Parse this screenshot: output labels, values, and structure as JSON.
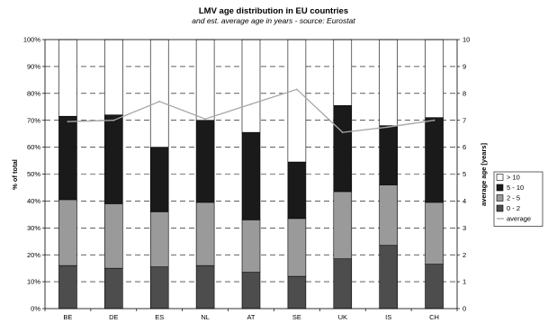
{
  "chart_data": {
    "type": "bar",
    "stacked": true,
    "title": "LMV age distribution in EU countries",
    "subtitle": "and est. average age in years - source: Eurostat",
    "categories": [
      "BE",
      "DE",
      "ES",
      "NL",
      "AT",
      "SE",
      "UK",
      "IS",
      "CH"
    ],
    "ylabel": "% of total",
    "y2label": "average age [years]",
    "ylim": [
      0,
      100
    ],
    "y2lim": [
      0,
      10
    ],
    "yticks": [
      "0%",
      "10%",
      "20%",
      "30%",
      "40%",
      "50%",
      "60%",
      "70%",
      "80%",
      "90%",
      "100%"
    ],
    "y2ticks": [
      "0",
      "1",
      "2",
      "3",
      "4",
      "5",
      "6",
      "7",
      "8",
      "9",
      "10"
    ],
    "grid": true,
    "legend_position": "right",
    "series": [
      {
        "name": "0 - 2",
        "color": "#4d4d4d",
        "values": [
          16,
          15,
          15.5,
          16,
          13.5,
          12,
          18.5,
          23.5,
          16.5
        ]
      },
      {
        "name": "2 - 5",
        "color": "#9a9a9a",
        "values": [
          24.5,
          24,
          20.5,
          23.5,
          19.5,
          21.5,
          25,
          22.5,
          23
        ]
      },
      {
        "name": "5 - 10",
        "color": "#1a1a1a",
        "values": [
          31,
          33,
          24,
          30.5,
          32.5,
          21,
          32,
          22,
          31.5
        ]
      },
      {
        "name": "> 10",
        "color": "#ffffff",
        "values": [
          28.5,
          28,
          40,
          30,
          34.5,
          45.5,
          24.5,
          32,
          29
        ]
      }
    ],
    "line_series": {
      "name": "average",
      "color": "#a6a6a6",
      "axis": "right",
      "values": [
        6.95,
        7.0,
        7.7,
        7.05,
        7.6,
        8.15,
        6.55,
        6.75,
        7.0
      ]
    },
    "legend_order": [
      "> 10",
      "5 - 10",
      "2 - 5",
      "0 - 2",
      "average"
    ]
  }
}
